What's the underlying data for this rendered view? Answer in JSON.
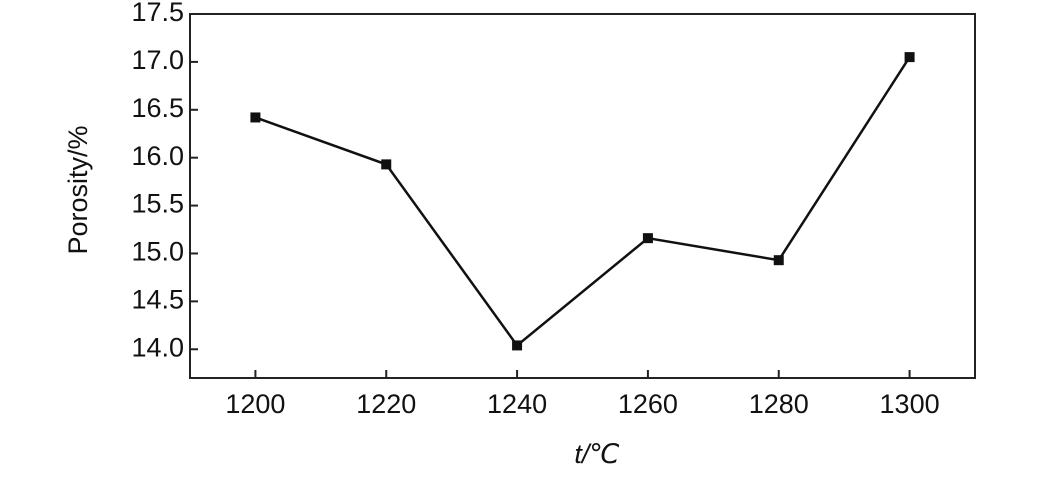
{
  "chart_data": {
    "type": "line",
    "x_label": "t/℃",
    "y_label": "Porosity/%",
    "x": [
      1200,
      1220,
      1240,
      1260,
      1280,
      1300
    ],
    "series": [
      {
        "name": "Porosity",
        "color": "#111111",
        "values": [
          16.42,
          15.93,
          14.04,
          15.16,
          14.93,
          17.05
        ]
      }
    ],
    "xlim": [
      1190,
      1310
    ],
    "xticks": [
      1200,
      1220,
      1240,
      1260,
      1280,
      1300
    ],
    "ylim": [
      13.7,
      17.5
    ],
    "yticks": [
      {
        "value": 14,
        "label": "14.0"
      },
      14.5,
      {
        "value": 15,
        "label": "15.0"
      },
      15.5,
      {
        "value": 16,
        "label": "16.0"
      },
      16.5,
      {
        "value": 17,
        "label": "17.0"
      },
      17.5
    ],
    "grid": false
  }
}
